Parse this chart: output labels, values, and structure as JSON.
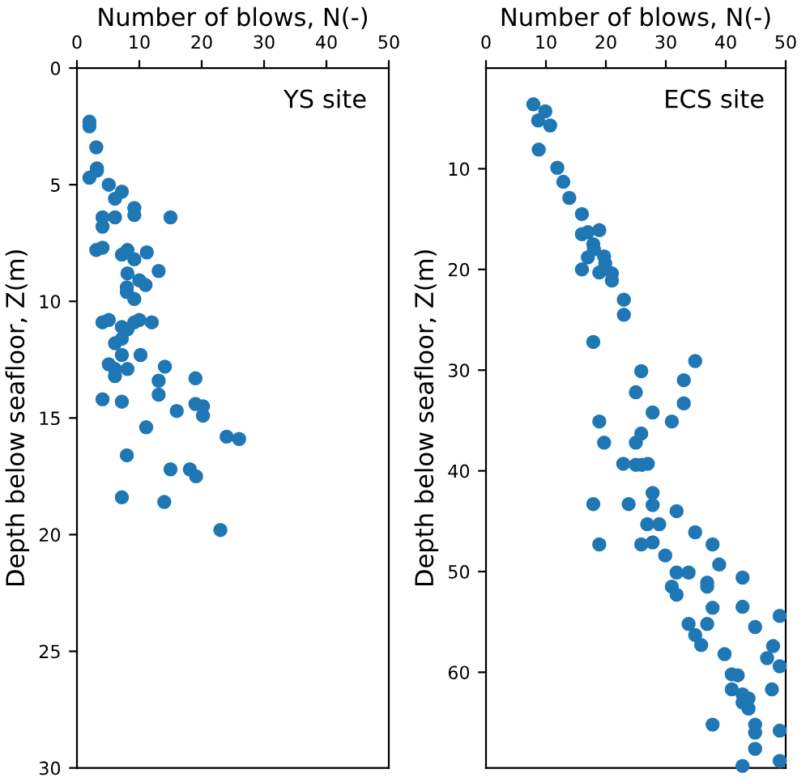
{
  "chart_data": [
    {
      "type": "scatter",
      "xlabel": "Number of blows, N(-)",
      "ylabel": "Depth below seafloor, Z(m)",
      "annotations": [
        "YS site"
      ],
      "xlim": [
        0,
        50
      ],
      "xticks": [
        0,
        10,
        20,
        30,
        40,
        50
      ],
      "ylim": [
        30,
        0
      ],
      "yticks": [
        0,
        5,
        10,
        15,
        20,
        25,
        30
      ],
      "marker": "circle",
      "grid": false,
      "legend": false,
      "series": [
        {
          "color": "#1f77b4",
          "x": [
            2.0,
            2.0,
            3.1,
            3.2,
            3.2,
            2.0,
            5.1,
            7.2,
            6.1,
            9.2,
            9.2,
            15.0,
            6.1,
            4.1,
            4.1,
            3.1,
            4.1,
            7.2,
            8.1,
            9.2,
            11.2,
            8.1,
            13.1,
            8.0,
            8.0,
            9.2,
            10.0,
            11.0,
            4.1,
            5.1,
            7.2,
            8.1,
            9.2,
            10.0,
            12.0,
            6.1,
            7.2,
            7.2,
            10.2,
            5.1,
            6.1,
            6.1,
            8.1,
            14.1,
            13.1,
            19.0,
            13.1,
            4.1,
            7.2,
            16.0,
            19.0,
            20.2,
            20.2,
            11.1,
            24.0,
            26.0,
            8.0,
            15.0,
            18.1,
            19.1,
            7.2,
            14.0,
            23.0
          ],
          "values": [
            2.3,
            2.5,
            3.4,
            4.3,
            4.4,
            4.7,
            5.0,
            5.3,
            5.6,
            6.0,
            6.3,
            6.4,
            6.4,
            6.4,
            6.8,
            7.8,
            7.7,
            8.0,
            7.8,
            8.2,
            7.9,
            8.8,
            8.7,
            9.4,
            9.6,
            9.9,
            9.1,
            9.3,
            10.9,
            10.8,
            11.1,
            11.2,
            10.9,
            10.8,
            10.9,
            11.8,
            11.6,
            12.3,
            12.3,
            12.7,
            12.9,
            13.2,
            12.9,
            12.8,
            13.4,
            13.3,
            14.0,
            14.2,
            14.3,
            14.7,
            14.4,
            14.5,
            14.9,
            15.4,
            15.8,
            15.9,
            16.6,
            17.2,
            17.2,
            17.5,
            18.4,
            18.6,
            19.8
          ]
        }
      ]
    },
    {
      "type": "scatter",
      "xlabel": "Number of blows, N(-)",
      "ylabel": "Depth below seafloor, Z(m)",
      "annotations": [
        "ECS site"
      ],
      "xlim": [
        0,
        50
      ],
      "xticks": [
        0,
        10,
        20,
        30,
        40,
        50
      ],
      "ylim": [
        69.5,
        0
      ],
      "yticks": [
        10,
        20,
        30,
        40,
        50,
        60
      ],
      "marker": "circle",
      "grid": false,
      "legend": false,
      "series": [
        {
          "color": "#1f77b4",
          "x": [
            7.9,
            9.9,
            8.7,
            10.7,
            8.8,
            11.9,
            12.9,
            13.9,
            16.0,
            16.0,
            17.0,
            18.9,
            17.9,
            18.0,
            17.0,
            16.0,
            19.7,
            19.9,
            18.9,
            21.0,
            21.0,
            23.0,
            23.0,
            17.9,
            25.9,
            34.9,
            33.0,
            25.0,
            33.0,
            27.8,
            18.9,
            31.0,
            25.9,
            25.0,
            19.7,
            22.9,
            25.0,
            26.0,
            27.0,
            27.8,
            17.9,
            23.8,
            27.8,
            31.8,
            26.9,
            28.9,
            34.9,
            18.9,
            25.9,
            27.8,
            37.8,
            29.9,
            38.9,
            31.8,
            33.8,
            31.0,
            31.8,
            36.9,
            36.9,
            42.8,
            37.8,
            42.8,
            49.0,
            33.8,
            36.9,
            44.9,
            34.9,
            35.9,
            47.9,
            46.9,
            49.0,
            39.8,
            41.0,
            42.0,
            41.0,
            47.7,
            42.8,
            43.8,
            42.8,
            43.8,
            37.8,
            44.9,
            44.9,
            49.0,
            44.9,
            42.8,
            49.0
          ],
          "values": [
            3.6,
            4.3,
            5.2,
            5.7,
            8.1,
            9.9,
            11.3,
            12.9,
            14.5,
            16.5,
            16.3,
            16.1,
            17.5,
            18.0,
            18.8,
            20.0,
            18.7,
            19.4,
            20.3,
            20.4,
            21.1,
            23.0,
            24.5,
            27.2,
            30.1,
            29.1,
            31.0,
            32.2,
            33.3,
            34.2,
            35.1,
            35.1,
            36.3,
            37.2,
            37.2,
            39.3,
            39.4,
            39.4,
            39.3,
            42.2,
            43.3,
            43.3,
            43.4,
            44.0,
            45.3,
            45.3,
            46.1,
            47.3,
            47.3,
            47.1,
            47.3,
            48.4,
            49.3,
            50.1,
            50.1,
            51.5,
            52.3,
            51.1,
            51.5,
            50.6,
            53.6,
            53.5,
            54.4,
            55.2,
            55.2,
            55.5,
            56.3,
            57.3,
            57.4,
            58.6,
            59.4,
            58.2,
            60.2,
            60.3,
            61.7,
            61.7,
            62.2,
            62.6,
            63.0,
            63.6,
            65.2,
            65.2,
            66.0,
            65.8,
            67.6,
            69.3,
            68.8
          ]
        }
      ]
    }
  ]
}
